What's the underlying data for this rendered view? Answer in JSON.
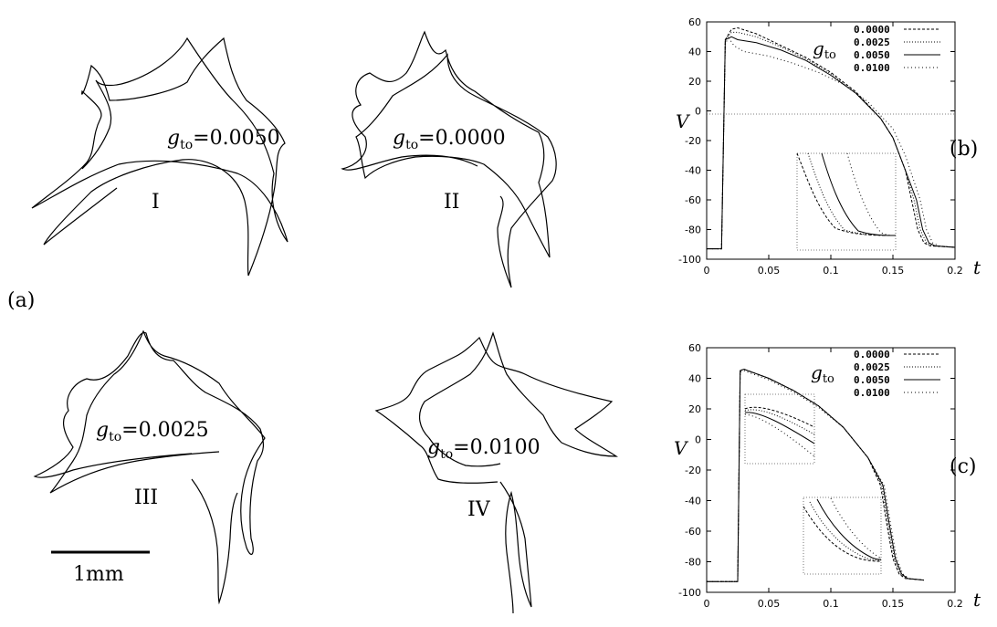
{
  "figure": {
    "panel_a_label": "(a)",
    "panel_b_label": "(b)",
    "panel_c_label": "(c)",
    "scale_bar_label": "1mm",
    "trajectories": [
      {
        "roman": "I",
        "g_prefix": "g",
        "g_sub": "to",
        "g_value": "=0.0050"
      },
      {
        "roman": "II",
        "g_prefix": "g",
        "g_sub": "to",
        "g_value": "=0.0000"
      },
      {
        "roman": "III",
        "g_prefix": "g",
        "g_sub": "to",
        "g_value": "=0.0025"
      },
      {
        "roman": "IV",
        "g_prefix": "g",
        "g_sub": "to",
        "g_value": "=0.0100"
      }
    ]
  },
  "chart_data": [
    {
      "type": "line",
      "panel": "(b)",
      "xlabel": "t",
      "ylabel": "V",
      "xlim": [
        0,
        0.2
      ],
      "ylim": [
        -100,
        60
      ],
      "xticks": [
        "0",
        "0.05",
        "0.1",
        "0.15",
        "0.2"
      ],
      "yticks": [
        "60",
        "40",
        "20",
        "0",
        "-20",
        "-40",
        "-60",
        "-80",
        "-100"
      ],
      "legend_title_prefix": "g",
      "legend_title_sub": "to",
      "legend_position": "top-right",
      "series": [
        {
          "name": "0.0000",
          "dash": "3,2",
          "x": [
            0,
            0.012,
            0.015,
            0.02,
            0.025,
            0.04,
            0.06,
            0.08,
            0.1,
            0.12,
            0.14,
            0.15,
            0.16,
            0.165,
            0.17,
            0.175,
            0.18,
            0.2
          ],
          "y": [
            -93,
            -93,
            48,
            55,
            56,
            52,
            44,
            36,
            26,
            13,
            -5,
            -18,
            -40,
            -60,
            -80,
            -89,
            -91,
            -92
          ]
        },
        {
          "name": "0.0025",
          "dash": "1,2",
          "x": [
            0,
            0.012,
            0.015,
            0.02,
            0.025,
            0.04,
            0.06,
            0.08,
            0.1,
            0.12,
            0.14,
            0.15,
            0.16,
            0.167,
            0.172,
            0.177,
            0.182,
            0.2
          ],
          "y": [
            -93,
            -93,
            48,
            53,
            53,
            50,
            43,
            35,
            25,
            12,
            -5,
            -18,
            -40,
            -60,
            -80,
            -89,
            -91,
            -92
          ]
        },
        {
          "name": "0.0050",
          "dash": "",
          "x": [
            0,
            0.012,
            0.015,
            0.02,
            0.025,
            0.04,
            0.06,
            0.08,
            0.1,
            0.12,
            0.14,
            0.15,
            0.16,
            0.169,
            0.174,
            0.179,
            0.184,
            0.2
          ],
          "y": [
            -93,
            -93,
            48,
            50,
            48,
            46,
            41,
            34,
            24,
            12,
            -5,
            -18,
            -40,
            -60,
            -80,
            -89,
            -91,
            -92
          ]
        },
        {
          "name": "0.0100",
          "dash": "1,3",
          "x": [
            0,
            0.012,
            0.015,
            0.018,
            0.022,
            0.03,
            0.05,
            0.07,
            0.09,
            0.11,
            0.13,
            0.15,
            0.16,
            0.172,
            0.177,
            0.182,
            0.187,
            0.2
          ],
          "y": [
            -93,
            -93,
            46,
            49,
            44,
            40,
            37,
            32,
            26,
            18,
            6,
            -12,
            -30,
            -60,
            -80,
            -89,
            -91,
            -92
          ]
        }
      ]
    },
    {
      "type": "line",
      "panel": "(c)",
      "xlabel": "t",
      "ylabel": "V",
      "xlim": [
        0,
        0.2
      ],
      "ylim": [
        -100,
        60
      ],
      "xticks": [
        "0",
        "0.05",
        "0.1",
        "0.15",
        "0.2"
      ],
      "yticks": [
        "60",
        "40",
        "20",
        "0",
        "-20",
        "-40",
        "-60",
        "-80",
        "-100"
      ],
      "legend_title_prefix": "g",
      "legend_title_sub": "to",
      "legend_position": "top-right",
      "series": [
        {
          "name": "0.0000",
          "dash": "3,2",
          "x": [
            0,
            0.025,
            0.027,
            0.03,
            0.05,
            0.07,
            0.09,
            0.11,
            0.13,
            0.14,
            0.145,
            0.15,
            0.155,
            0.16,
            0.175
          ],
          "y": [
            -93,
            -93,
            45,
            46,
            40,
            32,
            22,
            8,
            -12,
            -30,
            -55,
            -78,
            -88,
            -91,
            -92
          ]
        },
        {
          "name": "0.0025",
          "dash": "1,2",
          "x": [
            0,
            0.025,
            0.027,
            0.03,
            0.05,
            0.07,
            0.09,
            0.11,
            0.13,
            0.141,
            0.146,
            0.151,
            0.156,
            0.161,
            0.175
          ],
          "y": [
            -93,
            -93,
            45,
            46,
            40,
            32,
            22,
            8,
            -12,
            -30,
            -55,
            -78,
            -88,
            -91,
            -92
          ]
        },
        {
          "name": "0.0050",
          "dash": "",
          "x": [
            0,
            0.025,
            0.027,
            0.03,
            0.05,
            0.07,
            0.09,
            0.11,
            0.13,
            0.142,
            0.147,
            0.152,
            0.157,
            0.162,
            0.175
          ],
          "y": [
            -93,
            -93,
            45,
            46,
            40,
            32,
            22,
            8,
            -12,
            -30,
            -55,
            -78,
            -88,
            -91,
            -92
          ]
        },
        {
          "name": "0.0100",
          "dash": "1,3",
          "x": [
            0,
            0.025,
            0.027,
            0.03,
            0.05,
            0.07,
            0.09,
            0.11,
            0.13,
            0.143,
            0.148,
            0.153,
            0.158,
            0.163,
            0.175
          ],
          "y": [
            -93,
            -93,
            44,
            45,
            39,
            31,
            21,
            8,
            -12,
            -30,
            -55,
            -78,
            -88,
            -91,
            -92
          ]
        }
      ]
    }
  ]
}
